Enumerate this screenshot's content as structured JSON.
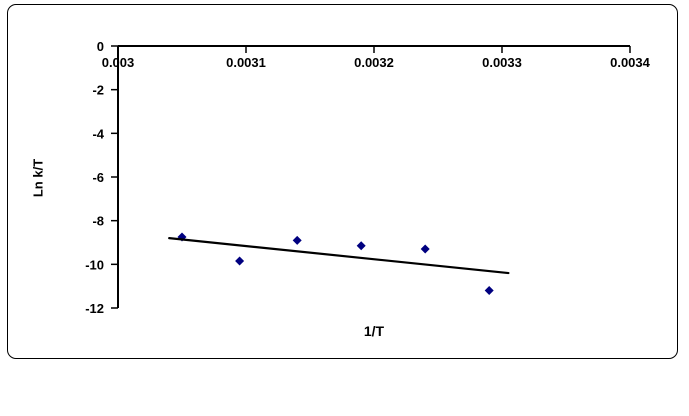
{
  "chart_data": {
    "type": "scatter",
    "title": "",
    "xlabel": "1/T",
    "ylabel": "Ln k/T",
    "xlim": [
      0.003,
      0.0034
    ],
    "ylim": [
      -12,
      0
    ],
    "grid": "off",
    "legend": "none",
    "x_ticks": {
      "values": [
        0.003,
        0.0031,
        0.0032,
        0.0033,
        0.0034
      ],
      "labels": [
        "0.003",
        "0.0031",
        "0.0032",
        "0.0033",
        "0.0034"
      ]
    },
    "y_ticks": {
      "values": [
        0,
        -2,
        -4,
        -6,
        -8,
        -10,
        -12
      ],
      "labels": [
        "0",
        "-2",
        "-4",
        "-6",
        "-8",
        "-10",
        "-12"
      ]
    },
    "series": [
      {
        "name": "data-points",
        "kind": "scatter",
        "marker": "diamond",
        "color": "#000080",
        "points": [
          {
            "x": 0.00305,
            "y": -8.75
          },
          {
            "x": 0.003095,
            "y": -9.85
          },
          {
            "x": 0.00314,
            "y": -8.9
          },
          {
            "x": 0.00319,
            "y": -9.15
          },
          {
            "x": 0.00324,
            "y": -9.3
          },
          {
            "x": 0.00329,
            "y": -11.2
          }
        ]
      },
      {
        "name": "trendline",
        "kind": "line",
        "color": "#000000",
        "points": [
          {
            "x": 0.00304,
            "y": -8.8
          },
          {
            "x": 0.003305,
            "y": -10.4
          }
        ]
      }
    ]
  },
  "colors": {
    "marker": "#000080",
    "trendline": "#000000",
    "axis": "#000000",
    "background": "#ffffff",
    "frame_border": "#000000"
  }
}
